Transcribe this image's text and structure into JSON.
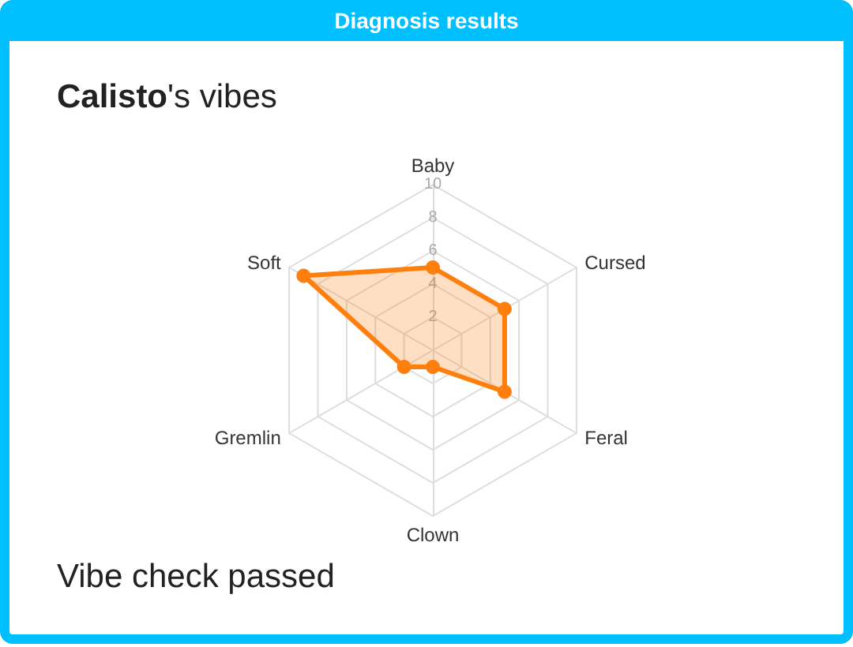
{
  "chart_data": {
    "type": "radar",
    "title": "Calisto's vibes",
    "annotations": [
      "Diagnosis results",
      "Vibe check passed"
    ],
    "categories": [
      "Baby",
      "Cursed",
      "Feral",
      "Clown",
      "Gremlin",
      "Soft"
    ],
    "series": [
      {
        "color": "#ff7f0e",
        "values": [
          5,
          5,
          5,
          1,
          2,
          9
        ]
      }
    ],
    "ylim": [
      0,
      10
    ],
    "yticks": [
      2,
      4,
      6,
      8,
      10
    ],
    "grid": true,
    "marker": "circle",
    "line_style": "solid"
  }
}
